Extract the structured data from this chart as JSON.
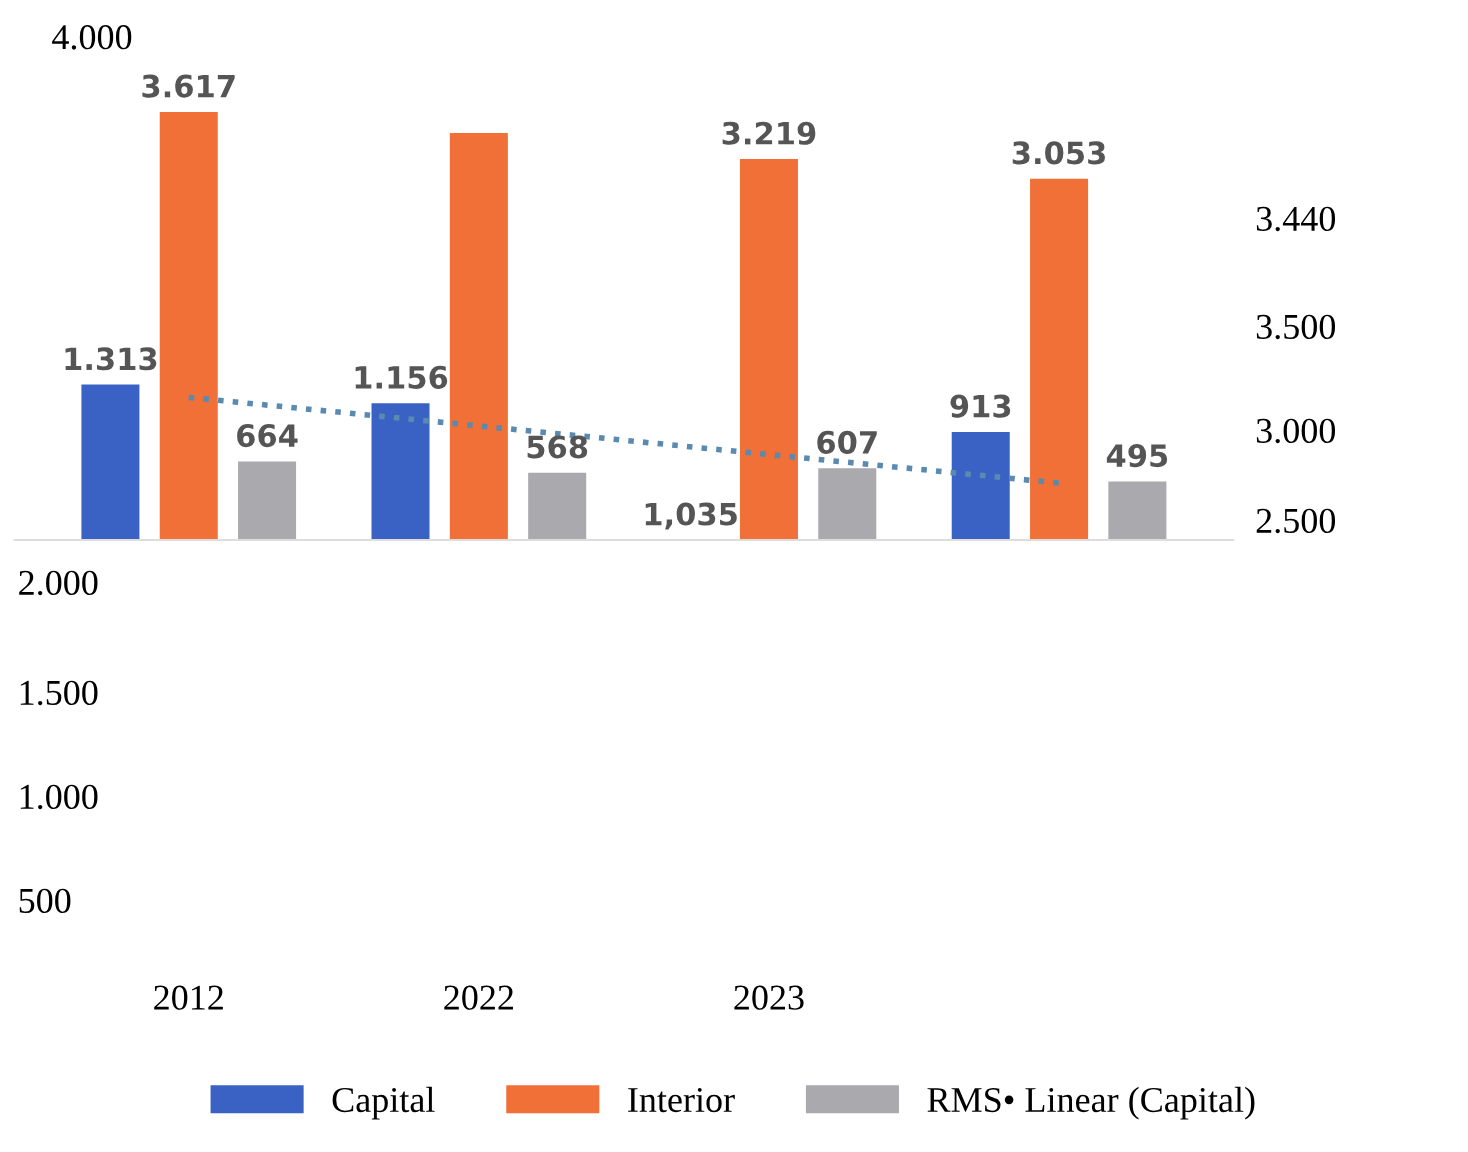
{
  "chart_data": {
    "type": "bar",
    "categories": [
      "2012",
      "2022",
      "2023",
      null
    ],
    "ylim": [
      0,
      3620
    ],
    "series": [
      {
        "name": "Capital",
        "color": "#3a62c4",
        "values": [
          1313,
          1156,
          1.035,
          913
        ],
        "value_labels": [
          "1.313",
          "1.156",
          "1,035",
          "913"
        ]
      },
      {
        "name": "Interior",
        "color": "#f07038",
        "values": [
          3617,
          3440,
          3219,
          3053
        ],
        "value_labels": [
          "3.617",
          null,
          "3.219",
          "3.053"
        ]
      },
      {
        "name": "RMS• Linear (Capital)",
        "color": "#a9a9ae",
        "values": [
          664,
          568,
          607,
          495
        ],
        "value_labels": [
          "664",
          "568",
          "607",
          "495"
        ]
      },
      {
        "type": "line",
        "color": "#5a8ab0",
        "line_style": "dotted",
        "values": [
          1205,
          964,
          722,
          481
        ]
      }
    ],
    "annotations": [
      "4.000",
      "3.440",
      "3.500",
      "3.000",
      "2.500",
      "2.000",
      "1.500",
      "1.000",
      "500"
    ],
    "legend": "bottom"
  }
}
